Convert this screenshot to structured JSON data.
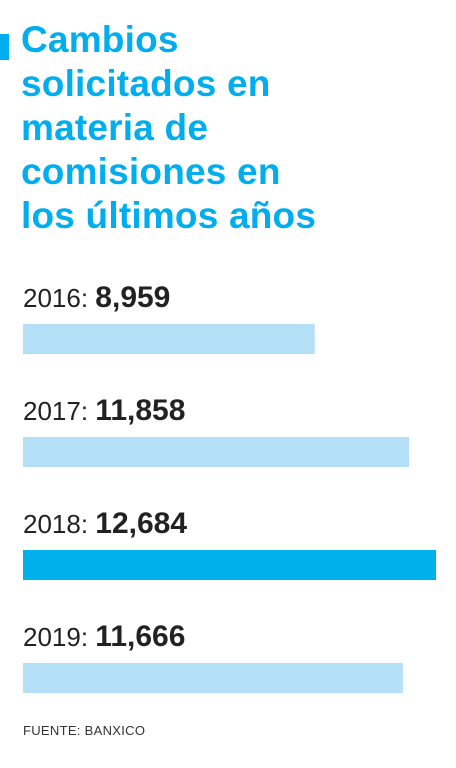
{
  "title_lines": [
    "Cambios",
    "solicitados en",
    "materia de",
    "comisiones en",
    "los últimos años"
  ],
  "source": "FUENTE: BANXICO",
  "colors": {
    "accent": "#00AEEF",
    "bar_default": "#B3DFF7",
    "bar_highlight": "#00B0EB",
    "text_dark": "#222222"
  },
  "chart_data": {
    "type": "bar",
    "orientation": "horizontal",
    "title": "Cambios solicitados en materia de comisiones en los últimos años",
    "categories": [
      "2016",
      "2017",
      "2018",
      "2019"
    ],
    "category_labels": [
      "2016:",
      "2017:",
      "2018:",
      "2019:"
    ],
    "values": [
      8959,
      11858,
      12684,
      11666
    ],
    "value_labels": [
      "8,959",
      "11,858",
      "12,684",
      "11,666"
    ],
    "highlight_index": 2,
    "xlim": [
      0,
      12684
    ],
    "grid": false,
    "legend": "none"
  }
}
